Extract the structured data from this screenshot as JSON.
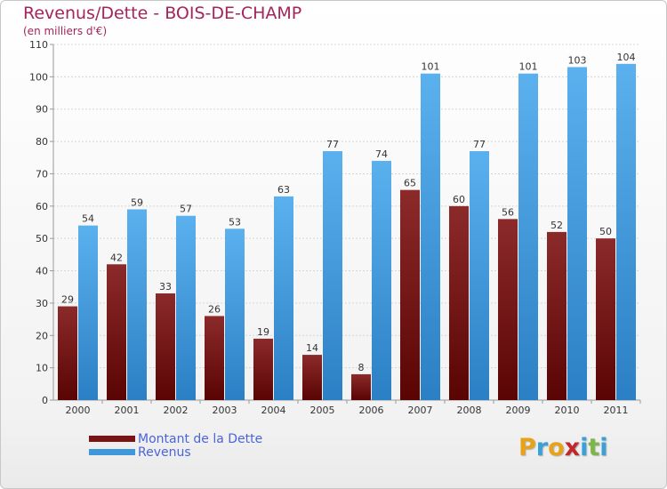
{
  "header": {
    "title": "Revenus/Dette - BOIS-DE-CHAMP",
    "subtitle": "(en milliers d'€)"
  },
  "chart_data": {
    "type": "bar",
    "categories": [
      "2000",
      "2001",
      "2002",
      "2003",
      "2004",
      "2005",
      "2006",
      "2007",
      "2008",
      "2009",
      "2010",
      "2011"
    ],
    "series": [
      {
        "name": "Montant de la Dette",
        "color": "#7a1414",
        "values": [
          29,
          42,
          33,
          26,
          19,
          14,
          8,
          65,
          60,
          56,
          52,
          50
        ]
      },
      {
        "name": "Revenus",
        "color": "#3f97dc",
        "values": [
          54,
          59,
          57,
          53,
          63,
          77,
          74,
          101,
          77,
          101,
          103,
          104
        ]
      }
    ],
    "ylim": [
      0,
      110
    ],
    "yticks": [
      0,
      10,
      20,
      30,
      40,
      50,
      60,
      70,
      80,
      90,
      100,
      110
    ],
    "grid": true,
    "legend": "bottom-left",
    "xlabel": "",
    "ylabel": ""
  },
  "logo": {
    "text": "Proxiti",
    "letter_colors": [
      "#e8a21a",
      "#3aa0d8",
      "#e8a21a",
      "#c0282d",
      "#3aa0d8",
      "#7ab648",
      "#3aa0d8"
    ]
  }
}
